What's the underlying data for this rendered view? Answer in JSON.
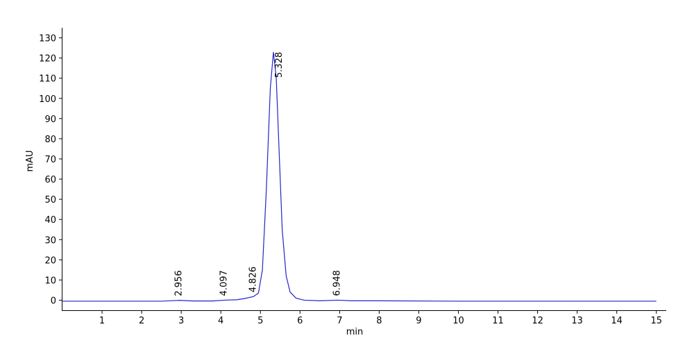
{
  "chart_data": {
    "type": "line",
    "xlabel": "min",
    "ylabel": "mAU",
    "xlim": [
      0,
      15.25
    ],
    "ylim": [
      -5,
      135
    ],
    "xticks": [
      1,
      2,
      3,
      4,
      5,
      6,
      7,
      8,
      9,
      10,
      11,
      12,
      13,
      14,
      15
    ],
    "yticks": [
      0,
      10,
      20,
      30,
      40,
      50,
      60,
      70,
      80,
      90,
      100,
      110,
      120,
      130
    ],
    "series": [
      {
        "color": "#2222cc",
        "x": [
          0,
          2.5,
          2.956,
          3.3,
          3.8,
          4.097,
          4.4,
          4.6,
          4.826,
          4.95,
          5.05,
          5.15,
          5.25,
          5.328,
          5.4,
          5.48,
          5.55,
          5.65,
          5.75,
          5.9,
          6.1,
          6.5,
          6.948,
          7.3,
          8,
          10,
          15
        ],
        "values": [
          -0.5,
          -0.5,
          -0.1,
          -0.4,
          -0.4,
          0,
          0.2,
          0.8,
          1.8,
          3.5,
          15,
          55,
          105,
          123,
          110,
          70,
          35,
          12,
          4,
          1,
          0,
          -0.3,
          0,
          -0.3,
          -0.3,
          -0.5,
          -0.5
        ]
      }
    ],
    "peaks": {
      "x": [
        2.956,
        4.097,
        4.826,
        5.328,
        6.948
      ],
      "values": [
        -0.1,
        0,
        1.8,
        123,
        0
      ]
    }
  }
}
